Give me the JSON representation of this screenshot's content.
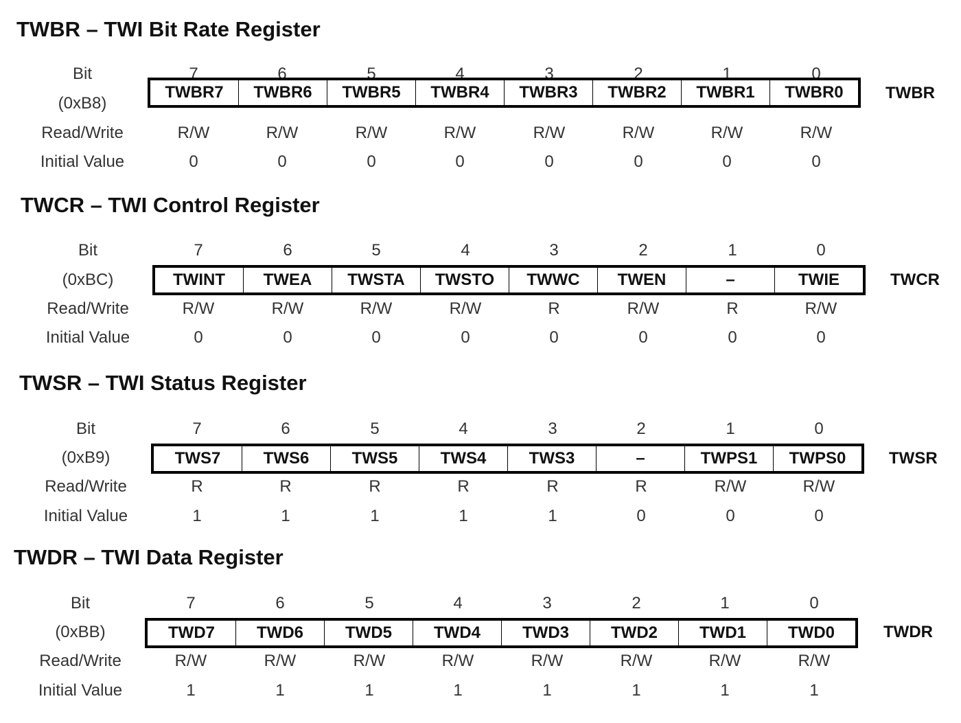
{
  "labels": {
    "bit": "Bit",
    "read_write": "Read/Write",
    "initial_value": "Initial Value"
  },
  "bit_numbers": [
    "7",
    "6",
    "5",
    "4",
    "3",
    "2",
    "1",
    "0"
  ],
  "registers": [
    {
      "title": "TWBR – TWI Bit Rate Register",
      "address": "(0xB8)",
      "short_name": "TWBR",
      "fields": [
        "TWBR7",
        "TWBR6",
        "TWBR5",
        "TWBR4",
        "TWBR3",
        "TWBR2",
        "TWBR1",
        "TWBR0"
      ],
      "access": [
        "R/W",
        "R/W",
        "R/W",
        "R/W",
        "R/W",
        "R/W",
        "R/W",
        "R/W"
      ],
      "initial": [
        "0",
        "0",
        "0",
        "0",
        "0",
        "0",
        "0",
        "0"
      ]
    },
    {
      "title": "TWCR – TWI Control Register",
      "address": "(0xBC)",
      "short_name": "TWCR",
      "fields": [
        "TWINT",
        "TWEA",
        "TWSTA",
        "TWSTO",
        "TWWC",
        "TWEN",
        "–",
        "TWIE"
      ],
      "access": [
        "R/W",
        "R/W",
        "R/W",
        "R/W",
        "R",
        "R/W",
        "R",
        "R/W"
      ],
      "initial": [
        "0",
        "0",
        "0",
        "0",
        "0",
        "0",
        "0",
        "0"
      ]
    },
    {
      "title": "TWSR – TWI Status Register",
      "address": "(0xB9)",
      "short_name": "TWSR",
      "fields": [
        "TWS7",
        "TWS6",
        "TWS5",
        "TWS4",
        "TWS3",
        "–",
        "TWPS1",
        "TWPS0"
      ],
      "access": [
        "R",
        "R",
        "R",
        "R",
        "R",
        "R",
        "R/W",
        "R/W"
      ],
      "initial": [
        "1",
        "1",
        "1",
        "1",
        "1",
        "0",
        "0",
        "0"
      ]
    },
    {
      "title": "TWDR – TWI Data Register",
      "address": "(0xBB)",
      "short_name": "TWDR",
      "fields": [
        "TWD7",
        "TWD6",
        "TWD5",
        "TWD4",
        "TWD3",
        "TWD2",
        "TWD1",
        "TWD0"
      ],
      "access": [
        "R/W",
        "R/W",
        "R/W",
        "R/W",
        "R/W",
        "R/W",
        "R/W",
        "R/W"
      ],
      "initial": [
        "1",
        "1",
        "1",
        "1",
        "1",
        "1",
        "1",
        "1"
      ]
    }
  ]
}
